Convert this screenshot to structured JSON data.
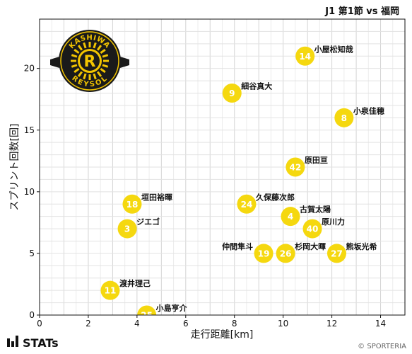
{
  "header": {
    "match_title": "J1 第1節 vs 福岡"
  },
  "footer": {
    "brand": "STATs",
    "copyright": "© SPORTERIA"
  },
  "logo": {
    "name": "kashiwa-reysol-crest",
    "top_text": "KASHIWA",
    "bottom_text": "REYSOL",
    "letter": "R"
  },
  "colors": {
    "marker": "#f5d80f",
    "crest_bg": "#1a1a1a",
    "crest_ring": "#f2c400",
    "grid": "#dddddd"
  },
  "chart_data": {
    "type": "scatter",
    "title": "",
    "xlabel": "走行距離[km]",
    "ylabel": "スプリント回数[回]",
    "xlim": [
      0,
      15
    ],
    "ylim": [
      0,
      24
    ],
    "xticks": [
      0,
      2,
      4,
      6,
      8,
      10,
      12,
      14
    ],
    "yticks": [
      0,
      5,
      10,
      15,
      20
    ],
    "grid": true,
    "points": [
      {
        "number": "14",
        "name": "小屋松知哉",
        "x": 10.9,
        "y": 21,
        "label_side": "right"
      },
      {
        "number": "9",
        "name": "細谷真大",
        "x": 7.9,
        "y": 18,
        "label_side": "right"
      },
      {
        "number": "8",
        "name": "小泉佳穂",
        "x": 12.5,
        "y": 16,
        "label_side": "right"
      },
      {
        "number": "42",
        "name": "原田亘",
        "x": 10.5,
        "y": 12,
        "label_side": "right"
      },
      {
        "number": "18",
        "name": "垣田裕暉",
        "x": 3.8,
        "y": 9,
        "label_side": "right"
      },
      {
        "number": "24",
        "name": "久保藤次郎",
        "x": 8.5,
        "y": 9,
        "label_side": "right"
      },
      {
        "number": "4",
        "name": "古賀太陽",
        "x": 10.3,
        "y": 8,
        "label_side": "right"
      },
      {
        "number": "3",
        "name": "ジエゴ",
        "x": 3.6,
        "y": 7,
        "label_side": "right"
      },
      {
        "number": "40",
        "name": "原川力",
        "x": 11.2,
        "y": 7,
        "label_side": "right"
      },
      {
        "number": "19",
        "name": "仲間隼斗",
        "x": 9.2,
        "y": 5,
        "label_side": "left"
      },
      {
        "number": "26",
        "name": "杉岡大暉",
        "x": 10.1,
        "y": 5,
        "label_side": "right"
      },
      {
        "number": "27",
        "name": "熊坂光希",
        "x": 12.2,
        "y": 5,
        "label_side": "right"
      },
      {
        "number": "11",
        "name": "渡井理己",
        "x": 2.9,
        "y": 2,
        "label_side": "right"
      },
      {
        "number": "25",
        "name": "小島亨介",
        "x": 4.4,
        "y": 0,
        "label_side": "right"
      }
    ]
  }
}
